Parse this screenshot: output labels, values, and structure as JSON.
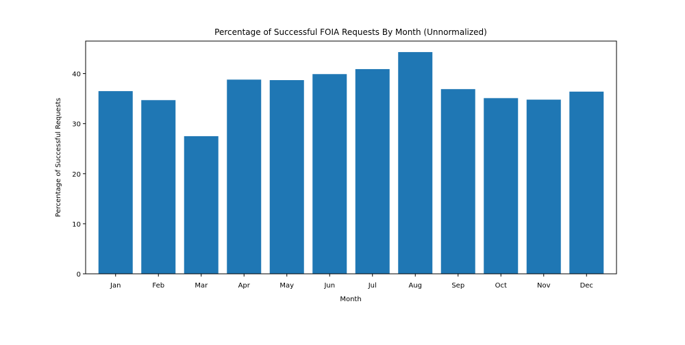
{
  "chart_data": {
    "type": "bar",
    "title": "Percentage of Successful FOIA Requests By Month (Unnormalized)",
    "xlabel": "Month",
    "ylabel": "Percentage of Successful Requests",
    "categories": [
      "Jan",
      "Feb",
      "Mar",
      "Apr",
      "May",
      "Jun",
      "Jul",
      "Aug",
      "Sep",
      "Oct",
      "Nov",
      "Dec"
    ],
    "values": [
      36.5,
      34.7,
      27.5,
      38.8,
      38.7,
      39.9,
      40.9,
      44.3,
      36.9,
      35.1,
      34.8,
      36.4
    ],
    "ylim": [
      0,
      46.5
    ],
    "yticks": [
      0,
      10,
      20,
      30,
      40
    ],
    "grid": false,
    "legend": "none",
    "colors": {
      "bar": "#1f77b4"
    }
  }
}
